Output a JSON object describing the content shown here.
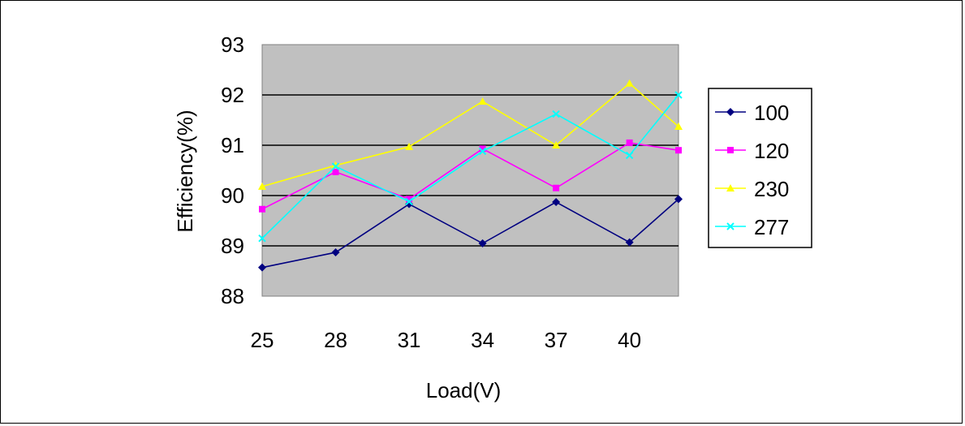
{
  "chart_data": {
    "type": "line",
    "title": "",
    "xlabel": "Load(V)",
    "ylabel": "Efficiency(%)",
    "categories": [
      "25",
      "28",
      "31",
      "34",
      "37",
      "40"
    ],
    "x": [
      25,
      28,
      31,
      34,
      37,
      40,
      42
    ],
    "xlim": [
      25,
      42
    ],
    "ylim": [
      88,
      93
    ],
    "yticks": [
      88,
      89,
      90,
      91,
      92,
      93
    ],
    "grid": "horizontal",
    "legend_position": "right",
    "plot_background": "#C0C0C0",
    "series": [
      {
        "name": "100",
        "color": "#000080",
        "marker": "diamond",
        "values": [
          88.57,
          88.87,
          89.83,
          89.05,
          89.87,
          89.07,
          89.93
        ]
      },
      {
        "name": "120",
        "color": "#FF00FF",
        "marker": "square",
        "values": [
          89.73,
          90.47,
          89.93,
          90.93,
          90.15,
          91.05,
          90.9
        ]
      },
      {
        "name": "230",
        "color": "#FFFF00",
        "marker": "triangle",
        "values": [
          90.18,
          90.6,
          90.97,
          91.87,
          91.0,
          92.23,
          91.37
        ]
      },
      {
        "name": "277",
        "color": "#00FFFF",
        "marker": "cross",
        "values": [
          89.15,
          90.58,
          89.88,
          90.88,
          91.62,
          90.8,
          92.0
        ]
      }
    ]
  }
}
